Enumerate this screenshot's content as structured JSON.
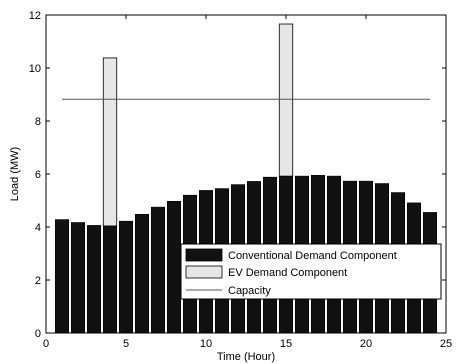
{
  "chart_data": {
    "type": "bar",
    "title": "",
    "xlabel": "Time (Hour)",
    "ylabel": "Load (MW)",
    "xlim": [
      0,
      25
    ],
    "ylim": [
      0,
      12
    ],
    "xticks": [
      0,
      5,
      10,
      15,
      20,
      25
    ],
    "yticks": [
      0,
      2,
      4,
      6,
      8,
      10,
      12
    ],
    "x": [
      1,
      2,
      3,
      4,
      5,
      6,
      7,
      8,
      9,
      10,
      11,
      12,
      13,
      14,
      15,
      16,
      17,
      18,
      19,
      20,
      21,
      22,
      23,
      24
    ],
    "series": [
      {
        "name": "Conventional Demand Component",
        "color": "#111111",
        "values": [
          4.28,
          4.17,
          4.06,
          4.04,
          4.22,
          4.48,
          4.75,
          4.97,
          5.2,
          5.38,
          5.45,
          5.6,
          5.72,
          5.88,
          5.92,
          5.92,
          5.95,
          5.92,
          5.73,
          5.73,
          5.64,
          5.3,
          4.91,
          4.55
        ]
      },
      {
        "name": "EV Demand Component",
        "color": "#e6e6e6",
        "values": [
          0,
          0,
          0,
          6.34,
          0,
          0,
          0,
          0,
          0,
          0,
          0,
          0,
          0,
          0,
          5.74,
          0,
          0,
          0,
          0,
          0,
          0,
          0,
          0,
          0
        ]
      }
    ],
    "reference_line": {
      "name": "Capacity",
      "value": 8.82,
      "x_range": [
        1,
        24
      ]
    },
    "legend": {
      "placement": "bottom-right",
      "entries": [
        "Conventional Demand Component",
        "EV Demand Component",
        "Capacity"
      ]
    },
    "grid": false
  }
}
